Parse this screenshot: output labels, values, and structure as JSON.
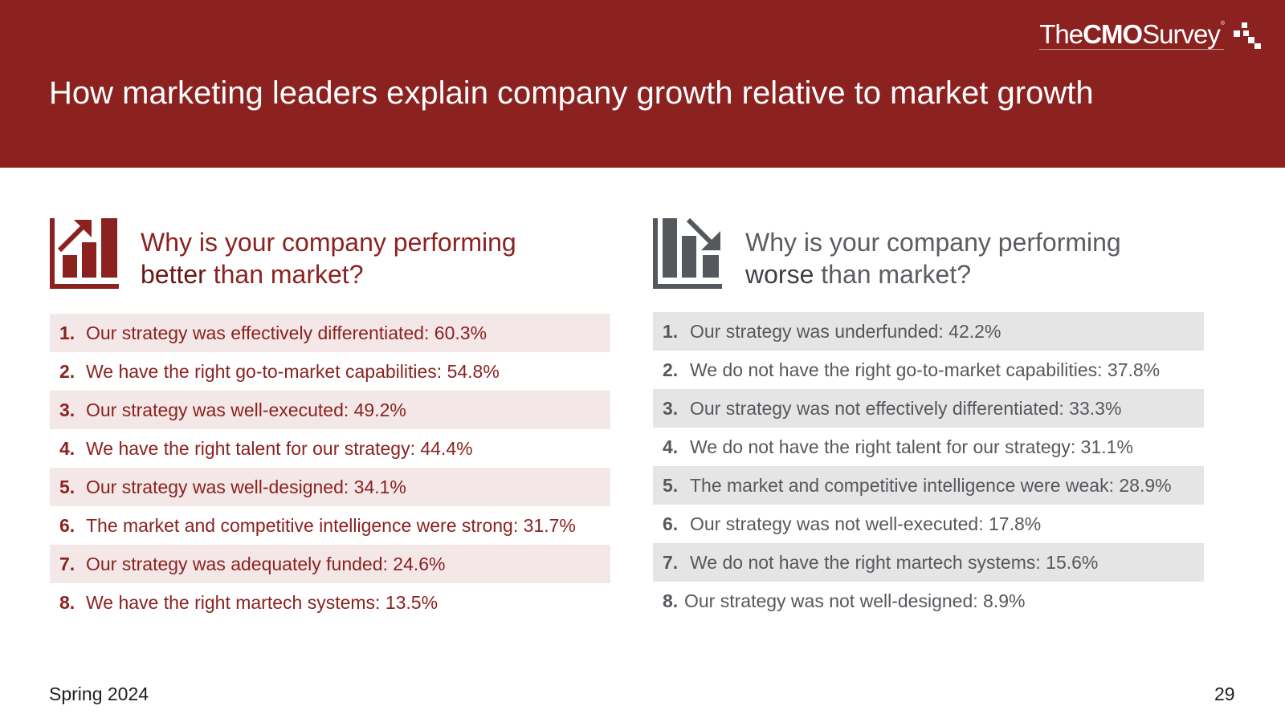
{
  "header": {
    "title": "How marketing leaders explain company growth relative to market growth",
    "logo": {
      "the": "The",
      "cmo": "CMO",
      "survey": "Survey",
      "reg": "®"
    },
    "background": "#8b2220"
  },
  "better": {
    "icon": "bar-chart-growth-icon",
    "question_line1": "Why is your company performing",
    "emphasis": "better",
    "question_rest": " than market?",
    "color": "#8b2220",
    "items": [
      {
        "num": "1.",
        "text": "Our strategy was effectively differentiated: 60.3%"
      },
      {
        "num": "2.",
        "text": "We have the right go-to-market capabilities: 54.8%"
      },
      {
        "num": "3.",
        "text": "Our strategy was well-executed: 49.2%"
      },
      {
        "num": "4.",
        "text": "We have the right talent for our strategy: 44.4%"
      },
      {
        "num": "5.",
        "text": "Our strategy was well-designed: 34.1%"
      },
      {
        "num": "6.",
        "text": "The market and competitive intelligence were strong: 31.7%"
      },
      {
        "num": "7.",
        "text": "Our strategy was adequately funded: 24.6%"
      },
      {
        "num": "8.",
        "text": "We have the right martech systems: 13.5%"
      }
    ]
  },
  "worse": {
    "icon": "bar-chart-decline-icon",
    "question_line1": "Why is your company performing",
    "emphasis": "worse",
    "question_rest": " than market?",
    "color": "#55585d",
    "items": [
      {
        "num": "1.",
        "text": "Our strategy was underfunded: 42.2%"
      },
      {
        "num": "2.",
        "text": "We do not have the right go-to-market capabilities: 37.8%"
      },
      {
        "num": "3.",
        "text": "Our strategy was not effectively differentiated: 33.3%"
      },
      {
        "num": "4.",
        "text": "We do not have the right talent for our strategy: 31.1%"
      },
      {
        "num": "5.",
        "text": "The market and competitive intelligence were weak: 28.9%"
      },
      {
        "num": "6.",
        "text": "Our strategy was not well-executed: 17.8%"
      },
      {
        "num": "7.",
        "text": "We do not have the right martech systems: 15.6%"
      },
      {
        "num": "8.",
        "text": "Our strategy was not well-designed: 8.9%"
      }
    ]
  },
  "footer": {
    "edition": "Spring 2024",
    "page": "29"
  }
}
